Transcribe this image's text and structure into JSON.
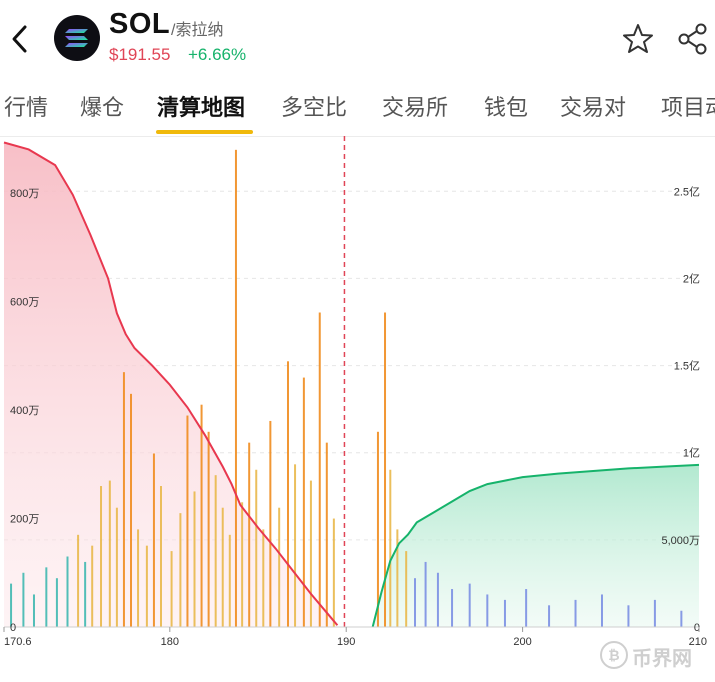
{
  "header": {
    "symbol": "SOL",
    "name_cn": "/索拉纳",
    "price": "$191.55",
    "change": "+6.66%"
  },
  "tabs": [
    {
      "label": "行情"
    },
    {
      "label": "爆仓"
    },
    {
      "label": "清算地图"
    },
    {
      "label": "多空比"
    },
    {
      "label": "交易所"
    },
    {
      "label": "钱包"
    },
    {
      "label": "交易对"
    },
    {
      "label": "项目动"
    }
  ],
  "active_tab": "清算地图",
  "watermark": "币界网",
  "colors": {
    "short_curve": "#e8384f",
    "long_curve": "#16b36b",
    "bar_high": "#f08c1e",
    "bar_mid": "#e9b84a",
    "bar_low_left": "#3fb8b0",
    "bar_low_right": "#7b8fe3",
    "current_price_line": "#e04556"
  },
  "chart_data": {
    "type": "area",
    "title": "",
    "current_price": 189.9,
    "xlim": [
      170.6,
      210
    ],
    "x_ticks": [
      "170.6",
      "180",
      "190",
      "200",
      "210"
    ],
    "left_axis": {
      "ylim": [
        0,
        9000000
      ],
      "ticks": [
        "0",
        "200万",
        "400万",
        "600万",
        "800万"
      ],
      "tick_values": [
        0,
        2000000,
        4000000,
        6000000,
        8000000
      ]
    },
    "right_axis": {
      "ylim": [
        0,
        280000000
      ],
      "ticks": [
        "0",
        "5,000万",
        "1亿",
        "1.5亿",
        "2亿",
        "2.5亿"
      ],
      "tick_values": [
        0,
        50000000,
        100000000,
        150000000,
        200000000,
        250000000
      ]
    },
    "series": [
      {
        "axis": "right",
        "x": [
          170.6,
          172,
          173.5,
          174.5,
          175.5,
          176.5,
          177,
          177.5,
          178,
          179,
          180,
          181,
          182,
          183,
          183.5,
          184,
          185,
          186,
          187,
          188,
          189,
          189.5
        ],
        "values": [
          278000000,
          274000000,
          265000000,
          248000000,
          225000000,
          200000000,
          180000000,
          168000000,
          160000000,
          150000000,
          139000000,
          126000000,
          110000000,
          92000000,
          82000000,
          70000000,
          57000000,
          45000000,
          32000000,
          19000000,
          7000000,
          1000000
        ]
      },
      {
        "axis": "right",
        "x": [
          191.5,
          192,
          192.5,
          193,
          193.5,
          194,
          195,
          196,
          197,
          198,
          199,
          200,
          202,
          204,
          206,
          208,
          210
        ],
        "values": [
          0,
          20000000,
          38000000,
          48000000,
          53000000,
          60000000,
          66000000,
          72000000,
          78000000,
          82000000,
          84000000,
          86000000,
          88000000,
          89500000,
          91000000,
          92000000,
          93000000
        ]
      },
      {
        "type": "bar",
        "axis": "left",
        "x": [
          171,
          171.7,
          172.3,
          173,
          173.6,
          174.2,
          174.8,
          175.2,
          175.6,
          176.1,
          176.6,
          177.0,
          177.4,
          177.8,
          178.2,
          178.7,
          179.1,
          179.5,
          180.1,
          180.6,
          181.0,
          181.4,
          181.8,
          182.2,
          182.6,
          183.0,
          183.4,
          183.75,
          184.1,
          184.5,
          184.9,
          185.3,
          185.7,
          186.2,
          186.7,
          187.1,
          187.6,
          188.0,
          188.5,
          188.9,
          189.3,
          191.8,
          192.2,
          192.5,
          192.9,
          193.4,
          193.9,
          194.5,
          195.2,
          196.0,
          197.0,
          198.0,
          199.0,
          200.2,
          201.5,
          203.0,
          204.5,
          206.0,
          207.5,
          209.0
        ],
        "values": [
          800000,
          1000000,
          600000,
          1100000,
          900000,
          1300000,
          1700000,
          1200000,
          1500000,
          2600000,
          2700000,
          2200000,
          4700000,
          4300000,
          1800000,
          1500000,
          3200000,
          2600000,
          1400000,
          2100000,
          3900000,
          2500000,
          4100000,
          3600000,
          2800000,
          2200000,
          1700000,
          8800000,
          2300000,
          3400000,
          2900000,
          1800000,
          3800000,
          2200000,
          4900000,
          3000000,
          4600000,
          2700000,
          5800000,
          3400000,
          2000000,
          3600000,
          5800000,
          2900000,
          1800000,
          1400000,
          900000,
          1200000,
          1000000,
          700000,
          800000,
          600000,
          500000,
          700000,
          400000,
          500000,
          600000,
          400000,
          500000,
          300000
        ]
      }
    ]
  }
}
